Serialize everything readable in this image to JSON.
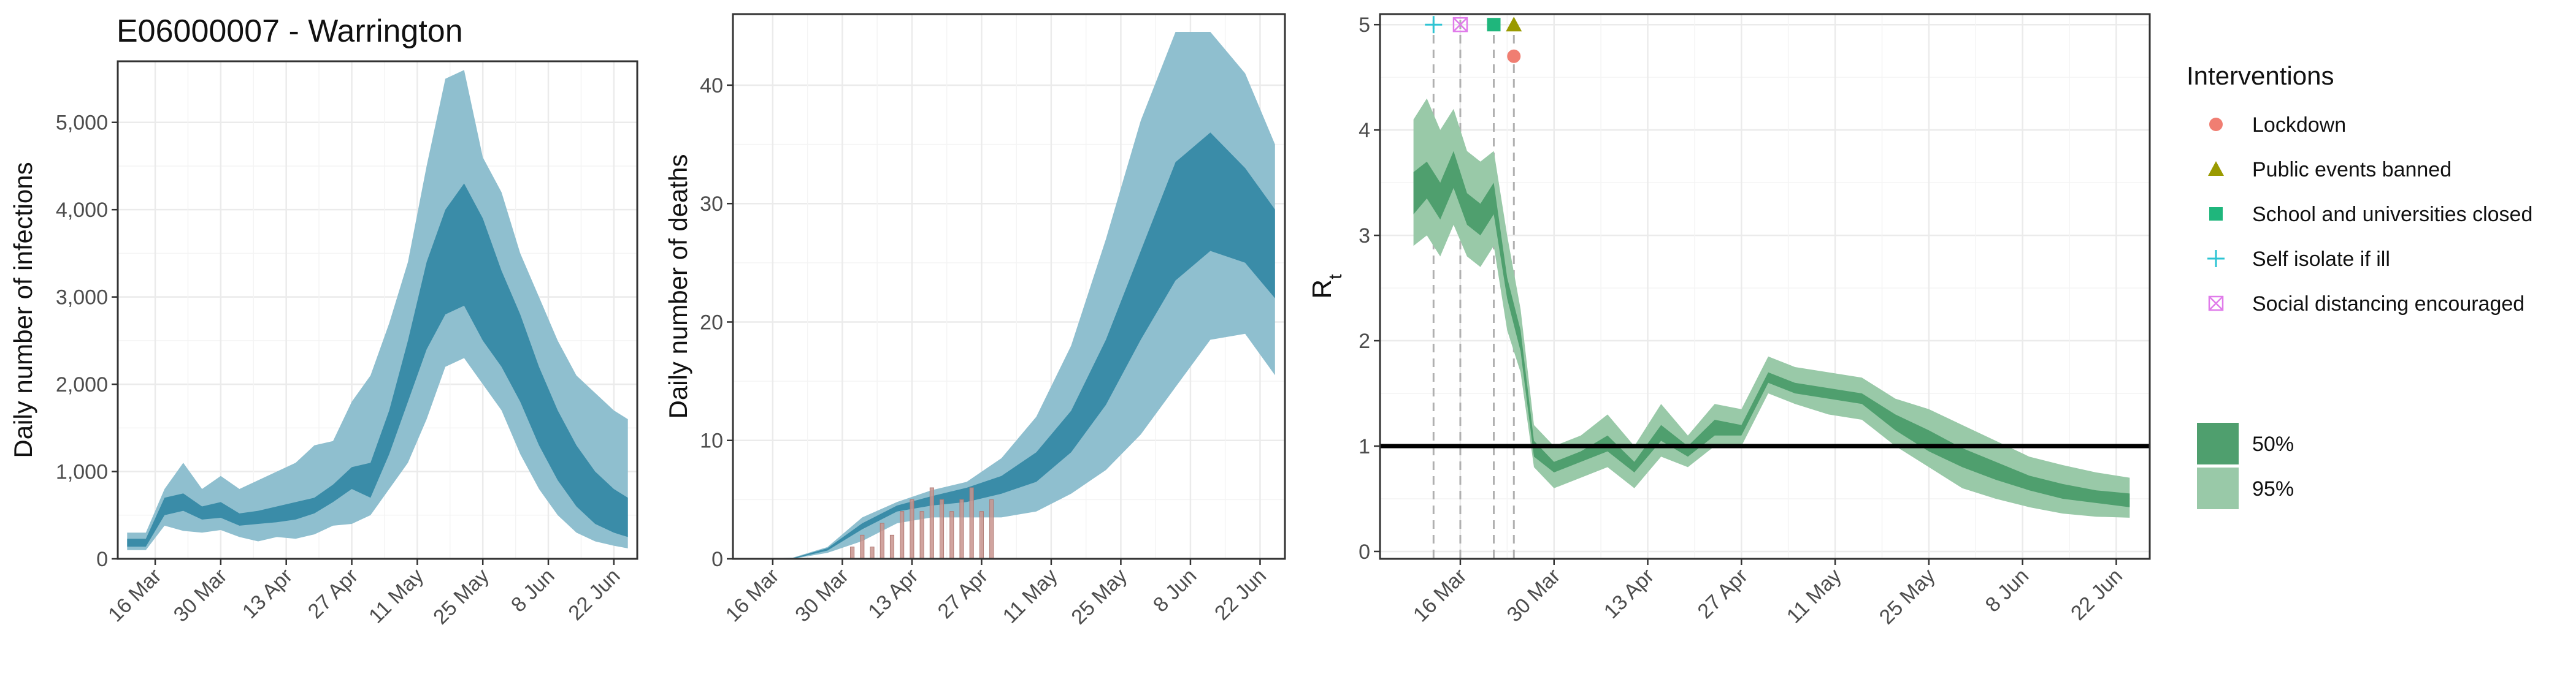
{
  "title": "E06000007 - Warrington",
  "colors": {
    "infections_95": "#8fbfcf",
    "infections_50": "#3a8ca8",
    "observed_deaths": "#c9948e",
    "rt_95": "#99c9a8",
    "rt_50": "#4f9f6e",
    "lockdown": "#f07e72",
    "public_events": "#9a9a00",
    "schools": "#1fb67c",
    "self_isolate": "#2ec4d3",
    "social_distancing": "#e07bea"
  },
  "chart_data": [
    {
      "type": "area",
      "id": "infections",
      "title": "E06000007 - Warrington",
      "ylabel": "Daily number of infections",
      "xlabel": "",
      "x_start": "2020-03-08",
      "x_end": "2020-06-27",
      "x_ticks": [
        "16 Mar",
        "30 Mar",
        "13 Apr",
        "27 Apr",
        "11 May",
        "25 May",
        "8 Jun",
        "22 Jun"
      ],
      "y_ticks": [
        0,
        1000,
        2000,
        3000,
        4000,
        5000
      ],
      "y_tick_labels": [
        "0",
        "1,000",
        "2,000",
        "3,000",
        "4,000",
        "5,000"
      ],
      "ylim": [
        0,
        5700
      ],
      "grid": true,
      "series": [
        {
          "band": "95%",
          "x": [
            "2020-03-10",
            "2020-03-14",
            "2020-03-18",
            "2020-03-22",
            "2020-03-26",
            "2020-03-30",
            "2020-04-03",
            "2020-04-07",
            "2020-04-11",
            "2020-04-15",
            "2020-04-19",
            "2020-04-23",
            "2020-04-27",
            "2020-05-01",
            "2020-05-05",
            "2020-05-09",
            "2020-05-13",
            "2020-05-17",
            "2020-05-21",
            "2020-05-25",
            "2020-05-29",
            "2020-06-02",
            "2020-06-06",
            "2020-06-10",
            "2020-06-14",
            "2020-06-18",
            "2020-06-22",
            "2020-06-25"
          ],
          "low": [
            100,
            100,
            380,
            320,
            300,
            330,
            250,
            200,
            250,
            230,
            280,
            380,
            400,
            500,
            800,
            1100,
            1600,
            2200,
            2300,
            2000,
            1700,
            1200,
            800,
            500,
            300,
            200,
            150,
            120
          ],
          "high": [
            300,
            300,
            800,
            1100,
            800,
            950,
            800,
            900,
            1000,
            1100,
            1300,
            1350,
            1800,
            2100,
            2700,
            3400,
            4500,
            5500,
            5600,
            4600,
            4200,
            3500,
            3000,
            2500,
            2100,
            1900,
            1700,
            1600
          ]
        },
        {
          "band": "50%",
          "x": [
            "2020-03-10",
            "2020-03-14",
            "2020-03-18",
            "2020-03-22",
            "2020-03-26",
            "2020-03-30",
            "2020-04-03",
            "2020-04-07",
            "2020-04-11",
            "2020-04-15",
            "2020-04-19",
            "2020-04-23",
            "2020-04-27",
            "2020-05-01",
            "2020-05-05",
            "2020-05-09",
            "2020-05-13",
            "2020-05-17",
            "2020-05-21",
            "2020-05-25",
            "2020-05-29",
            "2020-06-02",
            "2020-06-06",
            "2020-06-10",
            "2020-06-14",
            "2020-06-18",
            "2020-06-22",
            "2020-06-25"
          ],
          "low": [
            140,
            140,
            500,
            550,
            450,
            470,
            380,
            400,
            420,
            450,
            520,
            650,
            800,
            700,
            1200,
            1800,
            2400,
            2800,
            2900,
            2500,
            2200,
            1800,
            1300,
            900,
            600,
            400,
            300,
            250
          ],
          "high": [
            230,
            230,
            700,
            750,
            600,
            650,
            520,
            550,
            600,
            650,
            700,
            850,
            1050,
            1100,
            1700,
            2500,
            3400,
            4000,
            4300,
            3900,
            3300,
            2800,
            2200,
            1700,
            1300,
            1000,
            800,
            700
          ]
        }
      ]
    },
    {
      "type": "area",
      "id": "deaths",
      "title": "",
      "ylabel": "Daily number of deaths",
      "xlabel": "",
      "x_start": "2020-03-08",
      "x_end": "2020-06-27",
      "x_ticks": [
        "16 Mar",
        "30 Mar",
        "13 Apr",
        "27 Apr",
        "11 May",
        "25 May",
        "8 Jun",
        "22 Jun"
      ],
      "y_ticks": [
        0,
        10,
        20,
        30,
        40
      ],
      "y_tick_labels": [
        "0",
        "10",
        "20",
        "30",
        "40"
      ],
      "ylim": [
        0,
        46
      ],
      "grid": true,
      "series": [
        {
          "band": "95%",
          "x": [
            "2020-03-10",
            "2020-03-20",
            "2020-03-27",
            "2020-04-03",
            "2020-04-10",
            "2020-04-17",
            "2020-04-24",
            "2020-05-01",
            "2020-05-08",
            "2020-05-15",
            "2020-05-22",
            "2020-05-29",
            "2020-06-05",
            "2020-06-12",
            "2020-06-19",
            "2020-06-25"
          ],
          "low": [
            0,
            0,
            0.5,
            1.5,
            3.0,
            3.5,
            3.5,
            3.5,
            4.0,
            5.5,
            7.5,
            10.5,
            14.5,
            18.5,
            19.0,
            15.5
          ],
          "high": [
            0,
            0.1,
            1.0,
            3.5,
            4.8,
            5.8,
            6.5,
            8.5,
            12,
            18,
            27,
            37,
            44.5,
            44.5,
            41,
            35
          ]
        },
        {
          "band": "50%",
          "x": [
            "2020-03-10",
            "2020-03-20",
            "2020-03-27",
            "2020-04-03",
            "2020-04-10",
            "2020-04-17",
            "2020-04-24",
            "2020-05-01",
            "2020-05-08",
            "2020-05-15",
            "2020-05-22",
            "2020-05-29",
            "2020-06-05",
            "2020-06-12",
            "2020-06-19",
            "2020-06-25"
          ],
          "low": [
            0,
            0,
            0.7,
            2.5,
            4.0,
            4.5,
            4.8,
            5.5,
            6.5,
            9,
            13,
            18.5,
            23.5,
            26,
            25,
            22
          ],
          "high": [
            0,
            0.05,
            0.9,
            3.0,
            4.5,
            5.3,
            6.0,
            7.0,
            9,
            12.5,
            18.5,
            26,
            33.5,
            36,
            33,
            29.5
          ]
        },
        {
          "band": "observed",
          "x": [
            "2020-04-01",
            "2020-04-03",
            "2020-04-05",
            "2020-04-07",
            "2020-04-09",
            "2020-04-11",
            "2020-04-13",
            "2020-04-15",
            "2020-04-17",
            "2020-04-19",
            "2020-04-21",
            "2020-04-23",
            "2020-04-25",
            "2020-04-27",
            "2020-04-29"
          ],
          "values": [
            1,
            2,
            1,
            3,
            2,
            4,
            5,
            4,
            6,
            5,
            4,
            5,
            6,
            4,
            5
          ]
        }
      ]
    },
    {
      "type": "area",
      "id": "rt",
      "title": "",
      "ylabel": "Rt",
      "xlabel": "",
      "x_start": "2020-03-04",
      "x_end": "2020-06-27",
      "x_ticks": [
        "16 Mar",
        "30 Mar",
        "13 Apr",
        "27 Apr",
        "11 May",
        "25 May",
        "8 Jun",
        "22 Jun"
      ],
      "y_ticks": [
        0,
        1,
        2,
        3,
        4,
        5
      ],
      "y_tick_labels": [
        "0",
        "1",
        "2",
        "3",
        "4",
        "5"
      ],
      "ylim": [
        -0.07,
        5.1
      ],
      "grid": true,
      "reference_line": 1,
      "legend_position": "right",
      "series": [
        {
          "band": "95%",
          "x": [
            "2020-03-09",
            "2020-03-11",
            "2020-03-13",
            "2020-03-15",
            "2020-03-17",
            "2020-03-19",
            "2020-03-21",
            "2020-03-23",
            "2020-03-25",
            "2020-03-27",
            "2020-03-30",
            "2020-04-03",
            "2020-04-07",
            "2020-04-11",
            "2020-04-15",
            "2020-04-19",
            "2020-04-23",
            "2020-04-27",
            "2020-05-01",
            "2020-05-05",
            "2020-05-10",
            "2020-05-15",
            "2020-05-20",
            "2020-05-25",
            "2020-05-30",
            "2020-06-04",
            "2020-06-09",
            "2020-06-14",
            "2020-06-19",
            "2020-06-24"
          ],
          "low": [
            2.9,
            3.0,
            2.8,
            3.1,
            2.8,
            2.7,
            2.9,
            2.1,
            1.7,
            0.8,
            0.6,
            0.7,
            0.8,
            0.6,
            0.9,
            0.8,
            1.0,
            1.0,
            1.5,
            1.4,
            1.3,
            1.25,
            1.0,
            0.8,
            0.6,
            0.5,
            0.42,
            0.36,
            0.33,
            0.32
          ],
          "high": [
            4.1,
            4.3,
            4.0,
            4.2,
            3.8,
            3.7,
            3.8,
            3.0,
            2.3,
            1.2,
            1.0,
            1.1,
            1.3,
            1.0,
            1.4,
            1.1,
            1.4,
            1.35,
            1.85,
            1.75,
            1.7,
            1.65,
            1.45,
            1.35,
            1.2,
            1.05,
            0.9,
            0.82,
            0.75,
            0.7
          ]
        },
        {
          "band": "50%",
          "x": [
            "2020-03-09",
            "2020-03-11",
            "2020-03-13",
            "2020-03-15",
            "2020-03-17",
            "2020-03-19",
            "2020-03-21",
            "2020-03-23",
            "2020-03-25",
            "2020-03-27",
            "2020-03-30",
            "2020-04-03",
            "2020-04-07",
            "2020-04-11",
            "2020-04-15",
            "2020-04-19",
            "2020-04-23",
            "2020-04-27",
            "2020-05-01",
            "2020-05-05",
            "2020-05-10",
            "2020-05-15",
            "2020-05-20",
            "2020-05-25",
            "2020-05-30",
            "2020-06-04",
            "2020-06-09",
            "2020-06-14",
            "2020-06-19",
            "2020-06-24"
          ],
          "low": [
            3.2,
            3.35,
            3.15,
            3.45,
            3.1,
            3.0,
            3.2,
            2.4,
            1.9,
            0.9,
            0.75,
            0.85,
            0.95,
            0.75,
            1.05,
            0.9,
            1.1,
            1.1,
            1.6,
            1.5,
            1.45,
            1.4,
            1.15,
            0.95,
            0.8,
            0.68,
            0.58,
            0.5,
            0.46,
            0.42
          ],
          "high": [
            3.6,
            3.7,
            3.5,
            3.8,
            3.4,
            3.3,
            3.5,
            2.6,
            2.1,
            1.05,
            0.85,
            0.95,
            1.1,
            0.85,
            1.2,
            1.0,
            1.25,
            1.2,
            1.7,
            1.6,
            1.55,
            1.5,
            1.3,
            1.15,
            0.98,
            0.85,
            0.72,
            0.64,
            0.58,
            0.55
          ]
        }
      ],
      "interventions": [
        {
          "name": "Self isolate if ill",
          "date": "2020-03-12",
          "symbol": "cross",
          "color": "#2ec4d3"
        },
        {
          "name": "Social distancing encouraged",
          "date": "2020-03-16",
          "symbol": "boxx",
          "color": "#e07bea"
        },
        {
          "name": "School and universities closed",
          "date": "2020-03-21",
          "symbol": "square",
          "color": "#1fb67c"
        },
        {
          "name": "Public events banned",
          "date": "2020-03-24",
          "symbol": "triangle",
          "color": "#9a9a00"
        },
        {
          "name": "Lockdown",
          "date": "2020-03-24",
          "symbol": "circle",
          "color": "#f07e72"
        }
      ]
    }
  ],
  "legend": {
    "interventions_title": "Interventions",
    "interventions": [
      {
        "label": "Lockdown",
        "symbol": "circle",
        "color": "#f07e72"
      },
      {
        "label": "Public events banned",
        "symbol": "triangle",
        "color": "#9a9a00"
      },
      {
        "label": "School and universities closed",
        "symbol": "square",
        "color": "#1fb67c"
      },
      {
        "label": "Self isolate if ill",
        "symbol": "cross",
        "color": "#2ec4d3"
      },
      {
        "label": "Social distancing encouraged",
        "symbol": "boxx",
        "color": "#e07bea"
      }
    ],
    "bands": [
      {
        "label": "50%",
        "color": "#4f9f6e"
      },
      {
        "label": "95%",
        "color": "#99c9a8"
      }
    ]
  }
}
